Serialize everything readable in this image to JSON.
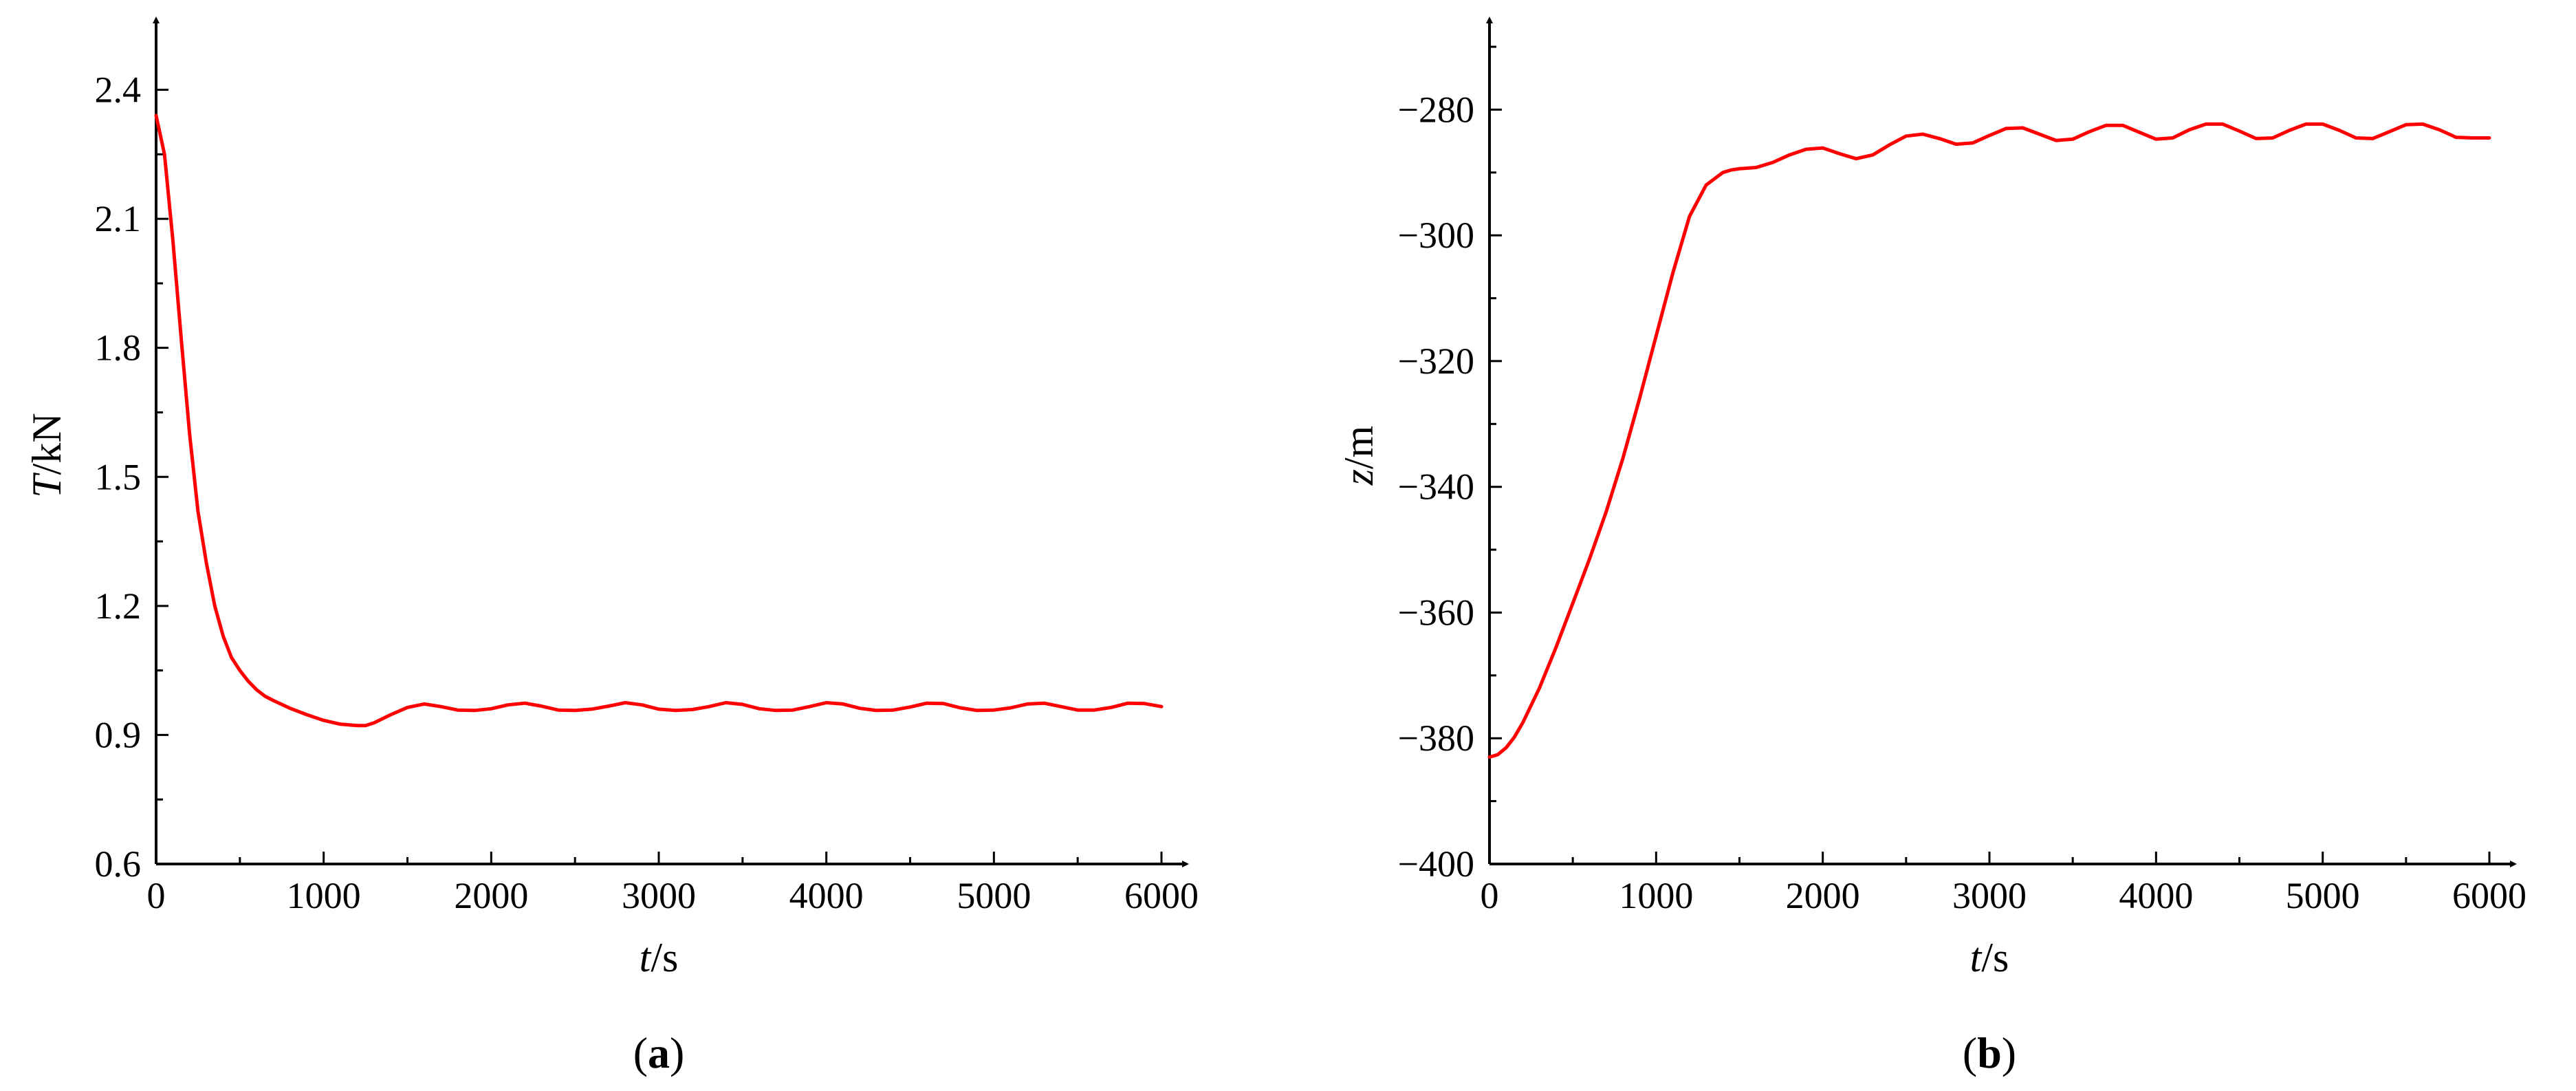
{
  "chart_data": [
    {
      "type": "line",
      "panel_label": "a",
      "xlabel_var": "t",
      "xlabel_unit": "/s",
      "ylabel_var": "T",
      "ylabel_unit": "/kN",
      "xlim": [
        0,
        6000
      ],
      "ylim": [
        0.6,
        2.5
      ],
      "x_ticks": [
        0,
        1000,
        2000,
        3000,
        4000,
        5000,
        6000
      ],
      "x_tick_labels": [
        "0",
        "1000",
        "2000",
        "3000",
        "4000",
        "5000",
        "6000"
      ],
      "y_ticks": [
        0.6,
        0.9,
        1.2,
        1.5,
        1.8,
        2.1,
        2.4
      ],
      "y_tick_labels": [
        "0.6",
        "0.9",
        "1.2",
        "1.5",
        "1.8",
        "2.1",
        "2.4"
      ],
      "grid": false,
      "line_color": "#ff0000",
      "series": [
        {
          "x": [
            0,
            50,
            100,
            150,
            200,
            250,
            300,
            350,
            400,
            450,
            500,
            550,
            600,
            650,
            700,
            800,
            900,
            1000,
            1100,
            1200,
            1250,
            1300,
            1400,
            1500,
            1600,
            1700,
            1800,
            1900,
            2000,
            2100,
            2200,
            2300,
            2400,
            2500,
            2600,
            2700,
            2800,
            2900,
            3000,
            3100,
            3200,
            3300,
            3400,
            3500,
            3600,
            3700,
            3800,
            3900,
            4000,
            4100,
            4200,
            4300,
            4400,
            4500,
            4600,
            4700,
            4800,
            4900,
            5000,
            5100,
            5200,
            5300,
            5400,
            5500,
            5600,
            5700,
            5800,
            5900,
            6000
          ],
          "y": [
            2.34,
            2.25,
            2.05,
            1.82,
            1.6,
            1.42,
            1.3,
            1.2,
            1.13,
            1.08,
            1.05,
            1.025,
            1.005,
            0.99,
            0.98,
            0.962,
            0.947,
            0.934,
            0.925,
            0.922,
            0.922,
            0.928,
            0.947,
            0.964,
            0.972,
            0.966,
            0.958,
            0.957,
            0.961,
            0.97,
            0.974,
            0.967,
            0.958,
            0.957,
            0.96,
            0.967,
            0.975,
            0.97,
            0.96,
            0.957,
            0.959,
            0.966,
            0.975,
            0.971,
            0.961,
            0.957,
            0.958,
            0.966,
            0.975,
            0.972,
            0.962,
            0.957,
            0.958,
            0.965,
            0.974,
            0.973,
            0.963,
            0.957,
            0.958,
            0.963,
            0.972,
            0.974,
            0.966,
            0.958,
            0.958,
            0.964,
            0.974,
            0.973,
            0.966
          ]
        }
      ]
    },
    {
      "type": "line",
      "panel_label": "b",
      "xlabel_var": "t",
      "xlabel_unit": "/s",
      "ylabel_var": "z",
      "ylabel_unit": "/m",
      "xlim": [
        0,
        6000
      ],
      "ylim": [
        -400,
        -270
      ],
      "x_ticks": [
        0,
        1000,
        2000,
        3000,
        4000,
        5000,
        6000
      ],
      "x_tick_labels": [
        "0",
        "1000",
        "2000",
        "3000",
        "4000",
        "5000",
        "6000"
      ],
      "y_ticks": [
        -400,
        -380,
        -360,
        -340,
        -320,
        -300,
        -280
      ],
      "y_tick_labels": [
        "−400",
        "−380",
        "−360",
        "−340",
        "−320",
        "−300",
        "−280"
      ],
      "grid": false,
      "line_color": "#ff0000",
      "series": [
        {
          "x": [
            0,
            50,
            100,
            150,
            200,
            300,
            400,
            500,
            600,
            700,
            800,
            900,
            1000,
            1100,
            1200,
            1300,
            1400,
            1450,
            1500,
            1600,
            1700,
            1800,
            1900,
            2000,
            2100,
            2200,
            2300,
            2400,
            2500,
            2600,
            2700,
            2800,
            2900,
            3000,
            3100,
            3200,
            3300,
            3400,
            3500,
            3600,
            3700,
            3800,
            3900,
            4000,
            4100,
            4200,
            4300,
            4400,
            4500,
            4600,
            4700,
            4800,
            4900,
            5000,
            5100,
            5200,
            5300,
            5400,
            5500,
            5600,
            5700,
            5800,
            5900,
            6000
          ],
          "y": [
            -383,
            -382.6,
            -381.5,
            -379.8,
            -377.5,
            -372,
            -365.5,
            -358.5,
            -351.5,
            -344,
            -335.5,
            -326,
            -316,
            -306,
            -297,
            -292,
            -290,
            -289.6,
            -289.4,
            -289.2,
            -288.4,
            -287.2,
            -286.3,
            -286.1,
            -287,
            -287.8,
            -287.2,
            -285.6,
            -284.2,
            -283.9,
            -284.6,
            -285.5,
            -285.3,
            -284.1,
            -283,
            -282.9,
            -283.9,
            -284.9,
            -284.7,
            -283.5,
            -282.5,
            -282.5,
            -283.6,
            -284.7,
            -284.5,
            -283.2,
            -282.3,
            -282.3,
            -283.4,
            -284.6,
            -284.5,
            -283.3,
            -282.3,
            -282.3,
            -283.3,
            -284.5,
            -284.6,
            -283.5,
            -282.4,
            -282.3,
            -283.2,
            -284.4,
            -284.5,
            -284.5
          ]
        }
      ]
    }
  ]
}
